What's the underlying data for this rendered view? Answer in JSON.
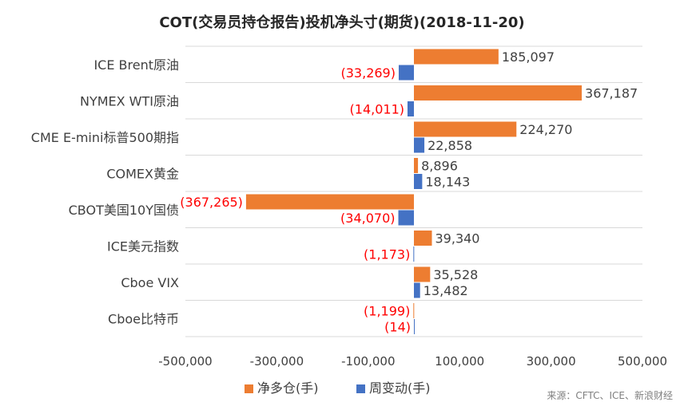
{
  "chart_data": {
    "type": "bar",
    "orientation": "horizontal",
    "title": "COT(交易员持仓报告)投机净头寸(期货)(2018-11-20)",
    "categories": [
      "ICE Brent原油",
      "NYMEX WTI原油",
      "CME E-mini标普500期指",
      "COMEX黄金",
      "CBOT美国10Y国债",
      "ICE美元指数",
      "Cboe VIX",
      "Cboe比特币"
    ],
    "series": [
      {
        "name": "净多仓(手)",
        "color": "#ED7D31",
        "values": [
          185097,
          367187,
          224270,
          8896,
          -367265,
          39340,
          35528,
          -1199
        ],
        "labels": [
          "185,097",
          "367,187",
          "224,270",
          "8,896",
          "(367,265)",
          "39,340",
          "35,528",
          "(1,199)"
        ]
      },
      {
        "name": "周变动(手)",
        "color": "#4472C4",
        "values": [
          -33269,
          -14011,
          22858,
          18143,
          -34070,
          -1173,
          13482,
          -14
        ],
        "labels": [
          "(33,269)",
          "(14,011)",
          "22,858",
          "18,143",
          "(34,070)",
          "(1,173)",
          "13,482",
          "(14)"
        ]
      }
    ],
    "xlim": [
      -500000,
      500000
    ],
    "xticks": [
      -500000,
      -300000,
      -100000,
      100000,
      300000,
      500000
    ],
    "xtick_labels": [
      "-500,000",
      "-300,000",
      "-100,000",
      "100,000",
      "300,000",
      "500,000"
    ],
    "negative_label_color": "#FF0000",
    "positive_label_color": "#404040",
    "grid": "horizontal category separators",
    "legend": "bottom-center",
    "source": "来源：CFTC、ICE、新浪财经"
  }
}
